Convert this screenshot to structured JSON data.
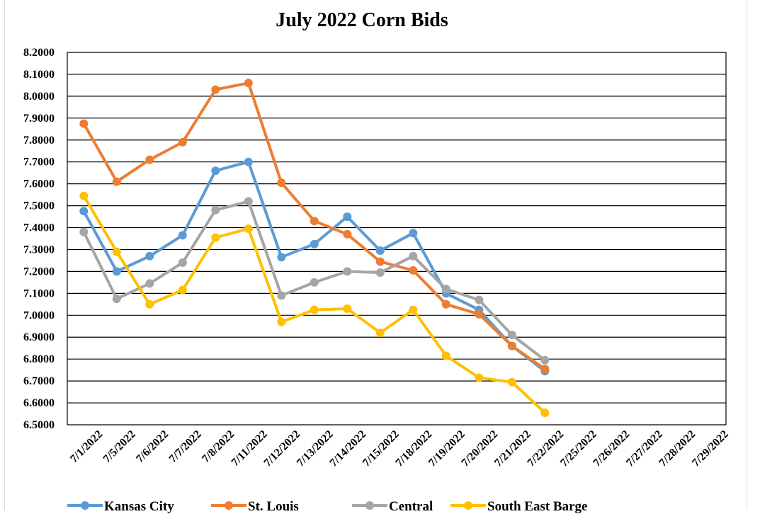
{
  "chart_data": {
    "type": "line",
    "title": "July 2022 Corn Bids",
    "xlabel": "",
    "ylabel": "",
    "ylim": [
      6.5,
      8.2
    ],
    "ytick_step": 0.1,
    "ytick_labels": [
      "6.5000",
      "6.6000",
      "6.7000",
      "6.8000",
      "6.9000",
      "7.0000",
      "7.1000",
      "7.2000",
      "7.3000",
      "7.4000",
      "7.5000",
      "7.6000",
      "7.7000",
      "7.8000",
      "7.9000",
      "8.0000",
      "8.1000",
      "8.2000"
    ],
    "grid": "horizontal",
    "legend_position": "bottom",
    "categories": [
      "7/1/2022",
      "7/5/2022",
      "7/6/2022",
      "7/7/2022",
      "7/8/2022",
      "7/11/2022",
      "7/12/2022",
      "7/13/2022",
      "7/14/2022",
      "7/15/2022",
      "7/18/2022",
      "7/19/2022",
      "7/20/2022",
      "7/21/2022",
      "7/22/2022",
      "7/25/2022",
      "7/26/2022",
      "7/27/2022",
      "7/28/2022",
      "7/29/2022"
    ],
    "series": [
      {
        "name": "Kansas City",
        "color": "#5B9BD5",
        "values": [
          7.475,
          7.2,
          7.27,
          7.365,
          7.66,
          7.7,
          7.265,
          7.325,
          7.45,
          7.295,
          7.375,
          7.1,
          7.025,
          6.86,
          6.745,
          null,
          null,
          null,
          null,
          null
        ]
      },
      {
        "name": "St. Louis",
        "color": "#ED7D31",
        "values": [
          7.875,
          7.61,
          7.71,
          7.79,
          8.03,
          8.06,
          7.605,
          7.43,
          7.37,
          7.245,
          7.205,
          7.05,
          7.005,
          6.86,
          6.755,
          null,
          null,
          null,
          null,
          null
        ]
      },
      {
        "name": "Central",
        "color": "#A5A5A5",
        "values": [
          7.38,
          7.075,
          7.145,
          7.24,
          7.48,
          7.52,
          7.09,
          7.15,
          7.2,
          7.195,
          7.27,
          7.12,
          7.07,
          6.91,
          6.795,
          null,
          null,
          null,
          null,
          null
        ]
      },
      {
        "name": "South East Barge",
        "color": "#FFC000",
        "values": [
          7.545,
          7.29,
          7.05,
          7.115,
          7.355,
          7.395,
          6.97,
          7.025,
          7.03,
          6.92,
          7.025,
          6.815,
          6.715,
          6.695,
          6.555,
          null,
          null,
          null,
          null,
          null
        ]
      }
    ]
  }
}
